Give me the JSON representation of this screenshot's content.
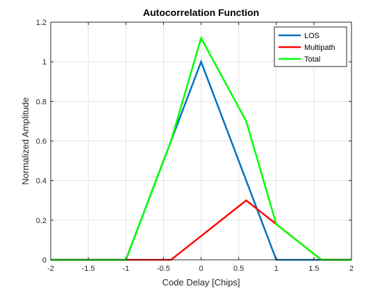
{
  "chart_data": {
    "type": "line",
    "title": "Autocorrelation Function",
    "xlabel": "Code Delay [Chips]",
    "ylabel": "Normalized Amplitude",
    "xlim": [
      -2,
      2
    ],
    "ylim": [
      0,
      1.2
    ],
    "xticks": [
      -2,
      -1.5,
      -1,
      -0.5,
      0,
      0.5,
      1,
      1.5,
      2
    ],
    "xtick_labels": [
      "-2",
      "-1.5",
      "-1",
      "-0.5",
      "0",
      "0.5",
      "1",
      "1.5",
      "2"
    ],
    "yticks": [
      0,
      0.2,
      0.4,
      0.6,
      0.8,
      1,
      1.2
    ],
    "ytick_labels": [
      "0",
      "0.2",
      "0.4",
      "0.6",
      "0.8",
      "1",
      "1.2"
    ],
    "grid": true,
    "legend_position": "top-right",
    "series": [
      {
        "name": "LOS",
        "color": "#0072BD",
        "x": [
          -2,
          -1,
          0,
          1,
          2
        ],
        "y": [
          0,
          0,
          1,
          0,
          0
        ]
      },
      {
        "name": "Multipath",
        "color": "#FF0000",
        "x": [
          -2,
          -0.4,
          0.6,
          1.6,
          2
        ],
        "y": [
          0,
          0,
          0.3,
          0,
          0
        ]
      },
      {
        "name": "Total",
        "color": "#00FF00",
        "x": [
          -2,
          -1,
          -0.4,
          0,
          0.6,
          1,
          1.6,
          2
        ],
        "y": [
          0,
          0,
          0.6,
          1.12,
          0.7,
          0.18,
          0,
          0
        ]
      }
    ]
  }
}
